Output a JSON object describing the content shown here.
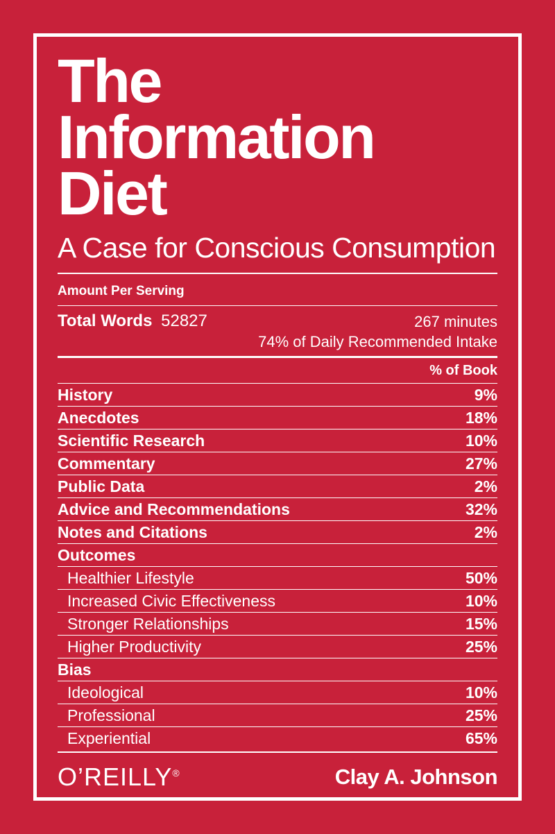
{
  "colors": {
    "background": "#C8213A",
    "foreground": "#FFFFFF"
  },
  "cover": {
    "title_lines": [
      "The",
      "Information",
      "Diet"
    ],
    "subtitle": "A Case for Conscious Consumption",
    "serving_header": "Amount Per Serving",
    "total_words_label": "Total Words",
    "total_words_value": "52827",
    "minutes_text": "267 minutes",
    "daily_intake_text": "74% of Daily Recommended Intake",
    "column_header": "% of Book",
    "rows": [
      {
        "label": "History",
        "value": "9%",
        "type": "main"
      },
      {
        "label": "Anecdotes",
        "value": "18%",
        "type": "main"
      },
      {
        "label": "Scientific Research",
        "value": "10%",
        "type": "main"
      },
      {
        "label": "Commentary",
        "value": "27%",
        "type": "main"
      },
      {
        "label": "Public Data",
        "value": "2%",
        "type": "main"
      },
      {
        "label": "Advice and Recommendations",
        "value": "32%",
        "type": "main"
      },
      {
        "label": "Notes and Citations",
        "value": "2%",
        "type": "main"
      },
      {
        "label": "Outcomes",
        "value": "",
        "type": "group"
      },
      {
        "label": "Healthier Lifestyle",
        "value": "50%",
        "type": "sub"
      },
      {
        "label": "Increased Civic Effectiveness",
        "value": "10%",
        "type": "sub"
      },
      {
        "label": "Stronger Relationships",
        "value": "15%",
        "type": "sub"
      },
      {
        "label": "Higher Productivity",
        "value": "25%",
        "type": "sub"
      },
      {
        "label": "Bias",
        "value": "",
        "type": "group"
      },
      {
        "label": "Ideological",
        "value": "10%",
        "type": "sub"
      },
      {
        "label": "Professional",
        "value": "25%",
        "type": "sub"
      },
      {
        "label": "Experiential",
        "value": "65%",
        "type": "sub"
      }
    ],
    "publisher": "O’REILLY",
    "publisher_mark": "®",
    "author": "Clay A. Johnson"
  }
}
